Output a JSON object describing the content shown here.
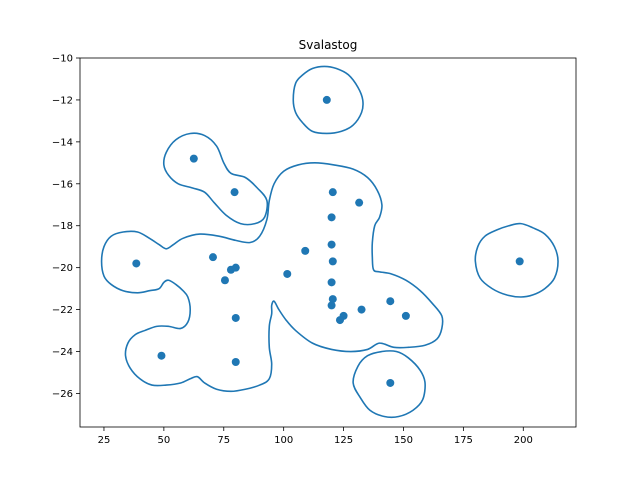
{
  "chart_data": {
    "type": "scatter",
    "title": "Svalastog",
    "xlabel": "",
    "ylabel": "",
    "xlim": [
      15,
      222
    ],
    "ylim": [
      -27.6,
      -10
    ],
    "xticks": [
      25,
      50,
      75,
      100,
      125,
      150,
      175,
      200
    ],
    "yticks": [
      -10,
      -12,
      -14,
      -16,
      -18,
      -20,
      -22,
      -24,
      -26
    ],
    "grid": false,
    "colors": {
      "points": "#1f77b4",
      "contour": "#1f77b4"
    },
    "points": [
      {
        "x": 118,
        "y": -12.0
      },
      {
        "x": 62.5,
        "y": -14.8
      },
      {
        "x": 79.5,
        "y": -16.4
      },
      {
        "x": 120.5,
        "y": -16.4
      },
      {
        "x": 131.5,
        "y": -16.9
      },
      {
        "x": 120,
        "y": -17.6
      },
      {
        "x": 120,
        "y": -18.9
      },
      {
        "x": 109,
        "y": -19.2
      },
      {
        "x": 38.5,
        "y": -19.8
      },
      {
        "x": 70.5,
        "y": -19.5
      },
      {
        "x": 120.5,
        "y": -19.7
      },
      {
        "x": 198.5,
        "y": -19.7
      },
      {
        "x": 78,
        "y": -20.1
      },
      {
        "x": 80,
        "y": -20.0
      },
      {
        "x": 101.5,
        "y": -20.3
      },
      {
        "x": 75.5,
        "y": -20.6
      },
      {
        "x": 120,
        "y": -20.7
      },
      {
        "x": 120.5,
        "y": -21.5
      },
      {
        "x": 120,
        "y": -21.8
      },
      {
        "x": 144.5,
        "y": -21.6
      },
      {
        "x": 132.5,
        "y": -22.0
      },
      {
        "x": 151,
        "y": -22.3
      },
      {
        "x": 125,
        "y": -22.3
      },
      {
        "x": 123.5,
        "y": -22.5
      },
      {
        "x": 80,
        "y": -22.4
      },
      {
        "x": 49,
        "y": -24.2
      },
      {
        "x": 80,
        "y": -24.5
      },
      {
        "x": 144.5,
        "y": -25.5
      }
    ],
    "contours": [
      [
        [
          104,
          -12.0
        ],
        [
          105,
          -11.2
        ],
        [
          108,
          -10.8
        ],
        [
          112,
          -10.5
        ],
        [
          117,
          -10.4
        ],
        [
          122,
          -10.5
        ],
        [
          127,
          -10.8
        ],
        [
          131,
          -11.4
        ],
        [
          133,
          -12.0
        ],
        [
          132.5,
          -12.6
        ],
        [
          129,
          -13.2
        ],
        [
          124,
          -13.5
        ],
        [
          118,
          -13.6
        ],
        [
          112,
          -13.5
        ],
        [
          108,
          -13.1
        ],
        [
          105,
          -12.6
        ]
      ],
      [
        [
          180,
          -19.7
        ],
        [
          181,
          -19.0
        ],
        [
          184,
          -18.5
        ],
        [
          189,
          -18.2
        ],
        [
          194,
          -18.0
        ],
        [
          199,
          -17.9
        ],
        [
          204,
          -18.1
        ],
        [
          209,
          -18.4
        ],
        [
          213,
          -19.0
        ],
        [
          214.5,
          -19.7
        ],
        [
          213,
          -20.5
        ],
        [
          209,
          -21.0
        ],
        [
          204,
          -21.3
        ],
        [
          199,
          -21.4
        ],
        [
          193,
          -21.3
        ],
        [
          187,
          -21.0
        ],
        [
          182,
          -20.5
        ]
      ],
      [
        [
          129,
          -25.5
        ],
        [
          131,
          -24.7
        ],
        [
          135,
          -24.2
        ],
        [
          141,
          -24.0
        ],
        [
          147,
          -24.0
        ],
        [
          152,
          -24.3
        ],
        [
          157,
          -24.9
        ],
        [
          159,
          -25.5
        ],
        [
          158,
          -26.3
        ],
        [
          154,
          -26.8
        ],
        [
          148,
          -27.1
        ],
        [
          142,
          -27.1
        ],
        [
          136,
          -26.8
        ],
        [
          132,
          -26.2
        ]
      ],
      [
        [
          50,
          -15.1
        ],
        [
          51,
          -14.5
        ],
        [
          55,
          -13.9
        ],
        [
          61,
          -13.6
        ],
        [
          67,
          -13.7
        ],
        [
          72,
          -14.2
        ],
        [
          75,
          -15.0
        ],
        [
          78,
          -15.5
        ],
        [
          84,
          -15.7
        ],
        [
          89,
          -16.2
        ],
        [
          93,
          -16.8
        ],
        [
          92,
          -17.6
        ],
        [
          88,
          -17.9
        ],
        [
          82,
          -17.9
        ],
        [
          76,
          -17.5
        ],
        [
          71,
          -16.9
        ],
        [
          67,
          -16.4
        ],
        [
          62,
          -16.2
        ],
        [
          56,
          -16.0
        ],
        [
          52,
          -15.6
        ]
      ],
      [
        [
          24,
          -19.7
        ],
        [
          25,
          -19.0
        ],
        [
          28,
          -18.5
        ],
        [
          33,
          -18.3
        ],
        [
          39,
          -18.3
        ],
        [
          44,
          -18.6
        ],
        [
          48,
          -18.9
        ],
        [
          51,
          -19.1
        ],
        [
          54,
          -18.9
        ],
        [
          58,
          -18.6
        ],
        [
          65,
          -18.4
        ],
        [
          73,
          -18.5
        ],
        [
          80,
          -18.7
        ],
        [
          86,
          -18.8
        ],
        [
          90,
          -18.5
        ],
        [
          93,
          -17.7
        ],
        [
          94,
          -16.8
        ],
        [
          96,
          -16.0
        ],
        [
          100,
          -15.4
        ],
        [
          106,
          -15.1
        ],
        [
          113,
          -15.0
        ],
        [
          121,
          -15.1
        ],
        [
          129,
          -15.3
        ],
        [
          135,
          -15.7
        ],
        [
          139,
          -16.3
        ],
        [
          141,
          -17.0
        ],
        [
          140,
          -17.6
        ],
        [
          138,
          -18.0
        ],
        [
          137,
          -18.8
        ],
        [
          137,
          -19.5
        ],
        [
          137.5,
          -20.1
        ],
        [
          140,
          -20.2
        ],
        [
          145,
          -20.3
        ],
        [
          151,
          -20.6
        ],
        [
          157,
          -21.1
        ],
        [
          162,
          -21.7
        ],
        [
          166,
          -22.3
        ],
        [
          166,
          -22.9
        ],
        [
          164,
          -23.4
        ],
        [
          159,
          -23.7
        ],
        [
          152,
          -23.8
        ],
        [
          146,
          -23.8
        ],
        [
          140,
          -23.6
        ],
        [
          135,
          -23.9
        ],
        [
          128,
          -24.0
        ],
        [
          120,
          -23.9
        ],
        [
          112,
          -23.6
        ],
        [
          105,
          -23.0
        ],
        [
          101,
          -22.5
        ],
        [
          98,
          -22.0
        ],
        [
          96,
          -21.6
        ],
        [
          95,
          -21.8
        ],
        [
          95,
          -22.2
        ],
        [
          94,
          -22.8
        ],
        [
          94,
          -23.8
        ],
        [
          95,
          -24.6
        ],
        [
          94,
          -25.3
        ],
        [
          90,
          -25.6
        ],
        [
          84,
          -25.8
        ],
        [
          78,
          -25.9
        ],
        [
          72,
          -25.8
        ],
        [
          67,
          -25.5
        ],
        [
          64,
          -25.2
        ],
        [
          61,
          -25.3
        ],
        [
          57,
          -25.5
        ],
        [
          51,
          -25.6
        ],
        [
          45,
          -25.6
        ],
        [
          40,
          -25.3
        ],
        [
          36,
          -24.8
        ],
        [
          34,
          -24.2
        ],
        [
          35,
          -23.6
        ],
        [
          38,
          -23.2
        ],
        [
          42,
          -23.0
        ],
        [
          47,
          -22.8
        ],
        [
          52,
          -22.8
        ],
        [
          57,
          -22.9
        ],
        [
          60,
          -22.6
        ],
        [
          61,
          -22.0
        ],
        [
          60,
          -21.4
        ],
        [
          58,
          -21.1
        ],
        [
          55,
          -20.8
        ],
        [
          52,
          -20.6
        ],
        [
          50,
          -20.7
        ],
        [
          48,
          -21.0
        ],
        [
          44,
          -21.1
        ],
        [
          39,
          -21.2
        ],
        [
          33,
          -21.1
        ],
        [
          28,
          -20.8
        ],
        [
          25,
          -20.4
        ]
      ]
    ]
  }
}
